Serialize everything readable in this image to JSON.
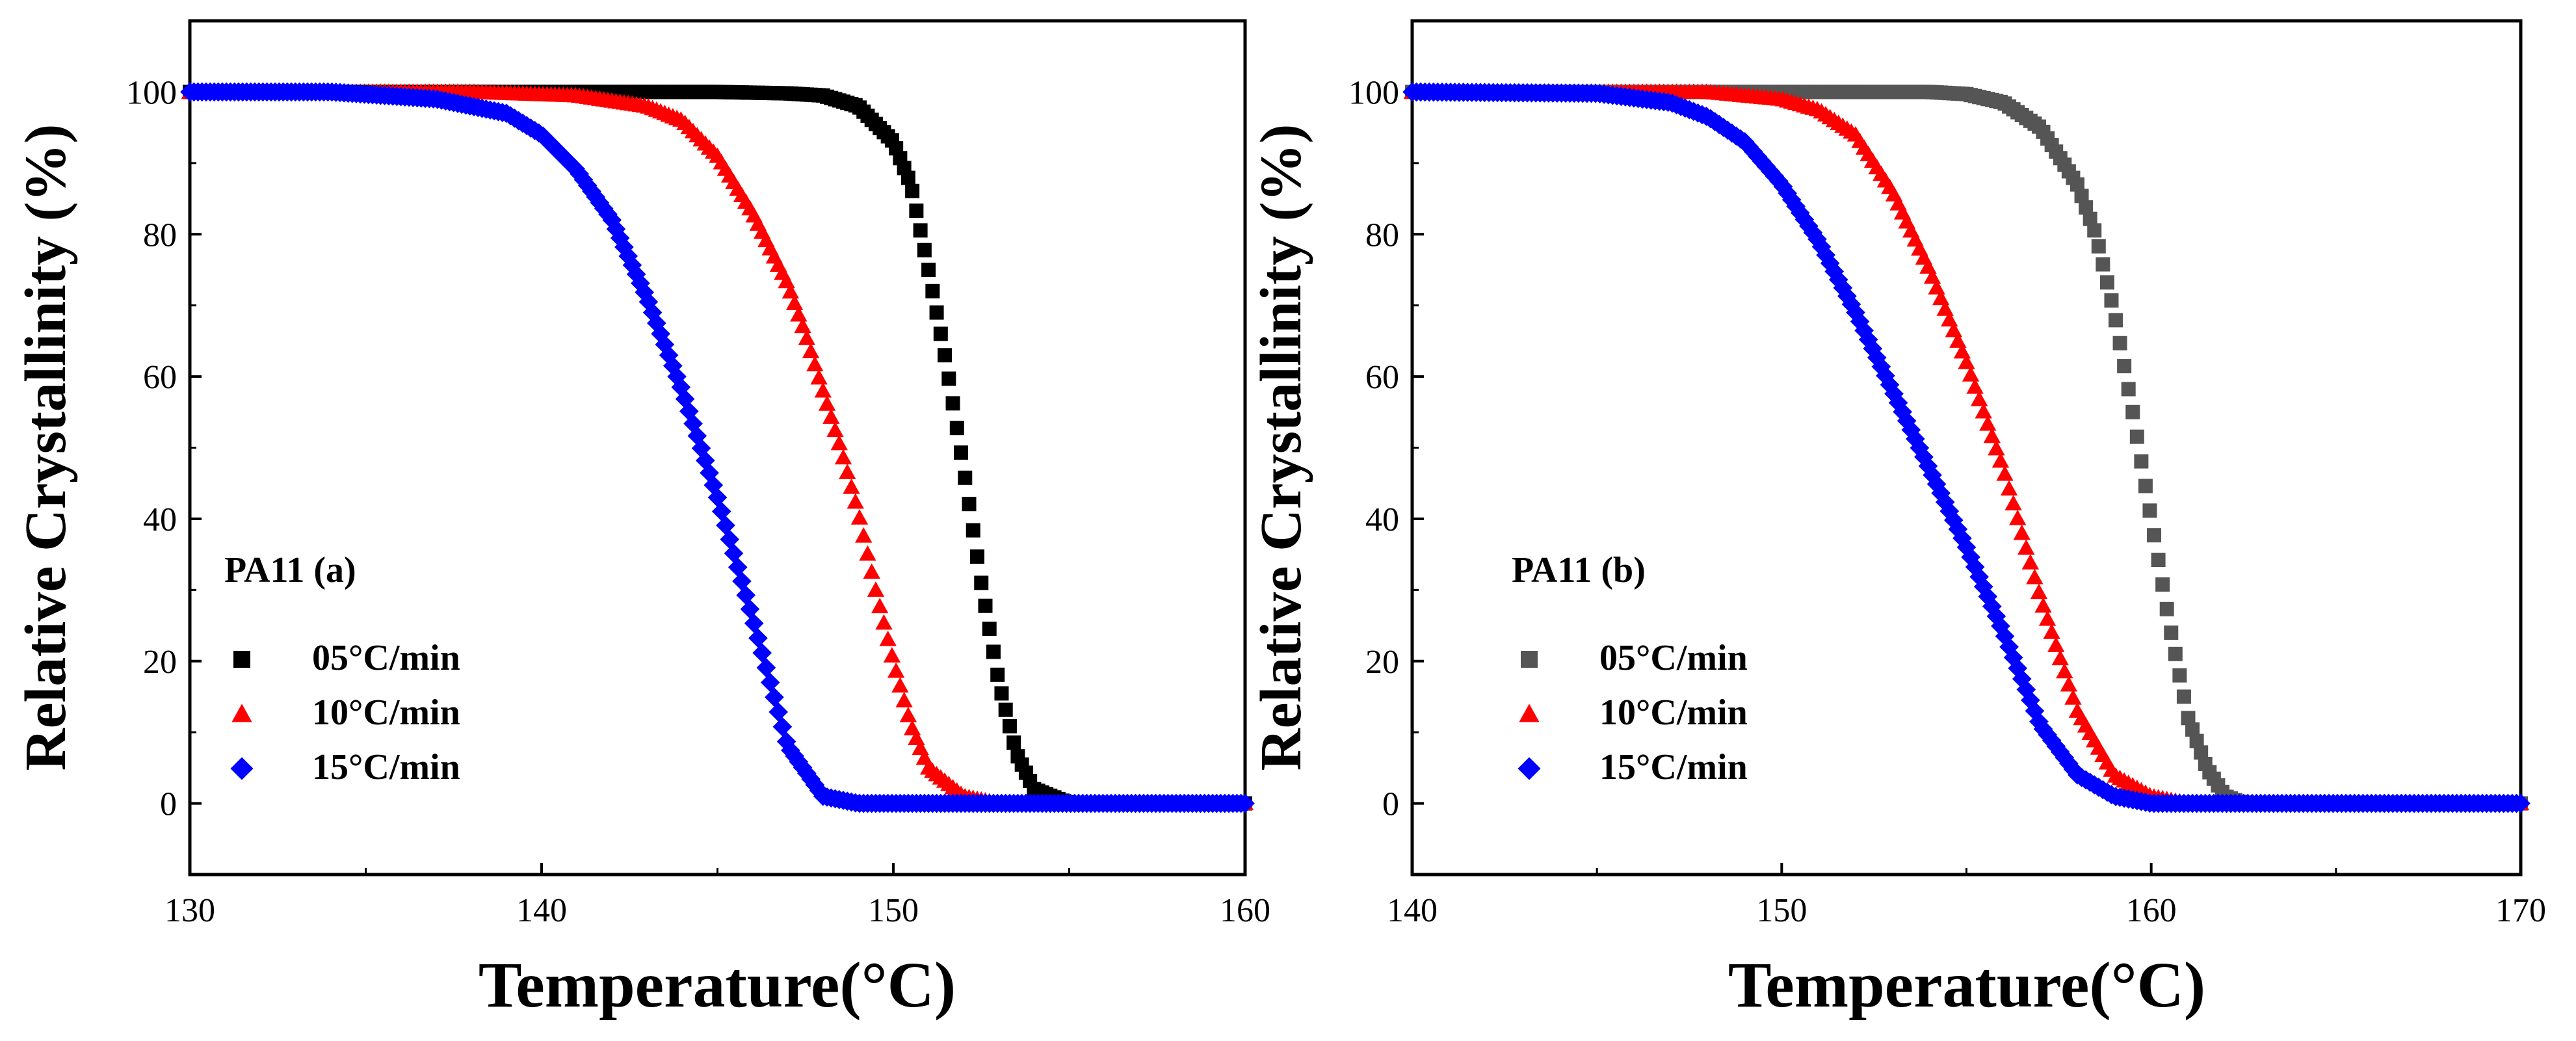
{
  "chart_data": [
    {
      "type": "scatter",
      "panel_label": "PA11 (a)",
      "xlabel": "Temperature(°C)",
      "ylabel": "Relative Crystallinity (%)",
      "xlim": [
        130,
        160
      ],
      "ylim": [
        -10,
        110
      ],
      "x_ticks": [
        "130",
        "140",
        "150",
        "160"
      ],
      "y_ticks": [
        "0",
        "20",
        "40",
        "60",
        "80",
        "100"
      ],
      "grid": false,
      "legend_position": "lower-left",
      "series": [
        {
          "name": "05°C/min",
          "marker": "square",
          "color": "#000000",
          "x": [
            130,
            140,
            145,
            147,
            148,
            149,
            150,
            150.5,
            151,
            151.5,
            152,
            152.5,
            153,
            153.5,
            154,
            155,
            156,
            160
          ],
          "y": [
            100,
            100,
            100,
            99.8,
            99.5,
            98,
            93,
            87,
            75,
            62,
            47,
            31,
            17,
            7,
            2,
            0,
            0,
            0
          ]
        },
        {
          "name": "10°C/min",
          "marker": "triangle",
          "color": "#ff0000",
          "x": [
            130,
            138,
            141,
            143,
            144,
            145,
            146,
            147,
            147.5,
            148,
            148.5,
            149,
            149.5,
            150,
            150.5,
            151,
            152,
            153,
            160
          ],
          "y": [
            100,
            100,
            99.5,
            98,
            96,
            91,
            83,
            73,
            66,
            58,
            50,
            41,
            30,
            20,
            11,
            5,
            1,
            0,
            0
          ]
        },
        {
          "name": "15°C/min",
          "marker": "diamond",
          "color": "#0000ff",
          "x": [
            130,
            134,
            137,
            139,
            140,
            141,
            142,
            143,
            144,
            145,
            146,
            147,
            148,
            149,
            150,
            160
          ],
          "y": [
            100,
            100,
            99,
            97,
            94,
            89,
            82,
            71,
            58,
            43,
            26,
            8,
            1,
            0,
            0,
            0
          ]
        }
      ]
    },
    {
      "type": "scatter",
      "panel_label": "PA11 (b)",
      "xlabel": "Temperature(°C)",
      "ylabel": "Relative Crystallinity (%)",
      "xlim": [
        140,
        170
      ],
      "ylim": [
        -10,
        110
      ],
      "x_ticks": [
        "140",
        "150",
        "160",
        "170"
      ],
      "y_ticks": [
        "0",
        "20",
        "40",
        "60",
        "80",
        "100"
      ],
      "grid": false,
      "legend_position": "lower-left",
      "series": [
        {
          "name": "05°C/min",
          "marker": "square",
          "color": "#555555",
          "x": [
            140,
            150,
            154,
            155,
            156,
            157,
            158,
            158.5,
            159,
            159.5,
            160,
            160.5,
            161,
            161.5,
            162,
            162.5,
            163,
            170
          ],
          "y": [
            100,
            100,
            100,
            99.7,
            98.5,
            95,
            87,
            80,
            69,
            55,
            40,
            25,
            12,
            5,
            1,
            0,
            0,
            0
          ]
        },
        {
          "name": "10°C/min",
          "marker": "triangle",
          "color": "#ff0000",
          "x": [
            140,
            148,
            150,
            151,
            152,
            153,
            154,
            155,
            156,
            157,
            158,
            159,
            160,
            161,
            170
          ],
          "y": [
            100,
            100,
            99,
            97.5,
            94,
            86,
            75,
            62,
            47,
            29,
            13,
            4,
            1,
            0,
            0
          ]
        },
        {
          "name": "15°C/min",
          "marker": "diamond",
          "color": "#0000ff",
          "x": [
            140,
            145,
            147,
            148,
            149,
            150,
            151,
            152,
            153,
            154,
            155,
            156,
            157,
            158,
            159,
            160,
            170
          ],
          "y": [
            100,
            99.8,
            98.5,
            96.5,
            93,
            87,
            79,
            69,
            58,
            47,
            36,
            24,
            11,
            4,
            1,
            0,
            0
          ]
        }
      ]
    }
  ]
}
